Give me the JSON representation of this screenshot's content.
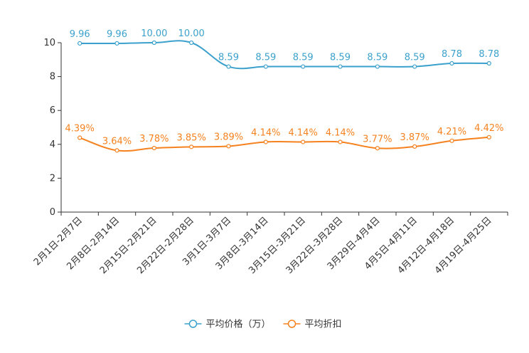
{
  "chart_data": {
    "type": "line",
    "categories": [
      "2月1日-2月7日",
      "2月8日-2月14日",
      "2月15日-2月21日",
      "2月22日-2月28日",
      "3月1日-3月7日",
      "3月8日-3月14日",
      "3月15日-3月21日",
      "3月22日-3月28日",
      "3月29日-4月4日",
      "4月5日-4月11日",
      "4月12日-4月18日",
      "4月19日-4月25日"
    ],
    "series": [
      {
        "name": "平均价格（万）",
        "color": "#3ba1cc",
        "values": [
          9.96,
          9.96,
          10.0,
          10.0,
          8.59,
          8.59,
          8.59,
          8.59,
          8.59,
          8.59,
          8.78,
          8.78
        ],
        "labels": [
          "9.96",
          "9.96",
          "10.00",
          "10.00",
          "8.59",
          "8.59",
          "8.59",
          "8.59",
          "8.59",
          "8.59",
          "8.78",
          "8.78"
        ]
      },
      {
        "name": "平均折扣",
        "color": "#f5821f",
        "values": [
          4.39,
          3.64,
          3.78,
          3.85,
          3.89,
          4.14,
          4.14,
          4.14,
          3.77,
          3.87,
          4.21,
          4.42
        ],
        "labels": [
          "4.39%",
          "3.64%",
          "3.78%",
          "3.85%",
          "3.89%",
          "4.14%",
          "4.14%",
          "4.14%",
          "3.77%",
          "3.87%",
          "4.21%",
          "4.42%"
        ]
      }
    ],
    "yticks": [
      "0",
      "2",
      "4",
      "6",
      "8",
      "10"
    ],
    "ylim": [
      0,
      10
    ],
    "grid": false,
    "legend_position": "bottom-center",
    "title": "",
    "xlabel": "",
    "ylabel": ""
  }
}
